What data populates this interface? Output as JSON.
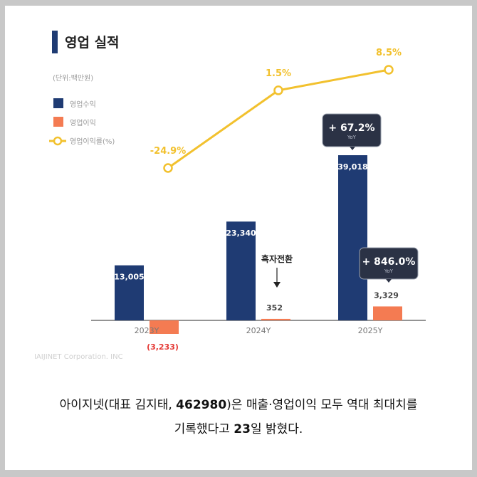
{
  "chart_data": {
    "type": "bar",
    "title": "영업 실적",
    "unit_note": "(단위:백만원)",
    "categories": [
      "2023Y",
      "2024Y",
      "2025Y"
    ],
    "series": [
      {
        "name": "영업수익",
        "kind": "bar",
        "color": "#1f3b73",
        "values": [
          13005,
          23340,
          39018
        ],
        "labels": [
          "13,005",
          "23,340",
          "39,018"
        ]
      },
      {
        "name": "영업이익",
        "kind": "bar",
        "color": "#f47b52",
        "values": [
          -3233,
          352,
          3329
        ],
        "labels": [
          "(3,233)",
          "352",
          "3,329"
        ]
      },
      {
        "name": "영업이익률(%)",
        "kind": "line",
        "color": "#f2c12e",
        "values": [
          -24.9,
          1.5,
          8.5
        ],
        "labels": [
          "-24.9%",
          "1.5%",
          "8.5%"
        ]
      }
    ],
    "annotations": [
      {
        "category": "2024Y",
        "text": "흑자전환",
        "arrow": "down"
      },
      {
        "category": "2025Y",
        "series": "영업수익",
        "text": "+ 67.2%",
        "sub": "YoY"
      },
      {
        "category": "2025Y",
        "series": "영업이익",
        "text": "+ 846.0%",
        "sub": "YoY"
      }
    ],
    "xlabel": "",
    "ylabel": "",
    "grid": false,
    "legend_position": "top-left"
  },
  "legend": {
    "items": [
      "영업수익",
      "영업이익",
      "영업이익률(%)"
    ]
  },
  "watermark": "IAIJINET Corporation. INC",
  "caption": {
    "line1_a": "아이지넷(대표 김지태, ",
    "line1_b": "462980",
    "line1_c": ")은 매출·영업이익 모두 역대 최대치를",
    "line2_a": "기록했다고 ",
    "line2_b": "23",
    "line2_c": "일 밝혔다."
  },
  "colors": {
    "navy": "#1f3b73",
    "orange": "#f47b52",
    "yellow": "#f2c12e",
    "tooltip": "#2b3245",
    "negative_label": "#e53935"
  }
}
